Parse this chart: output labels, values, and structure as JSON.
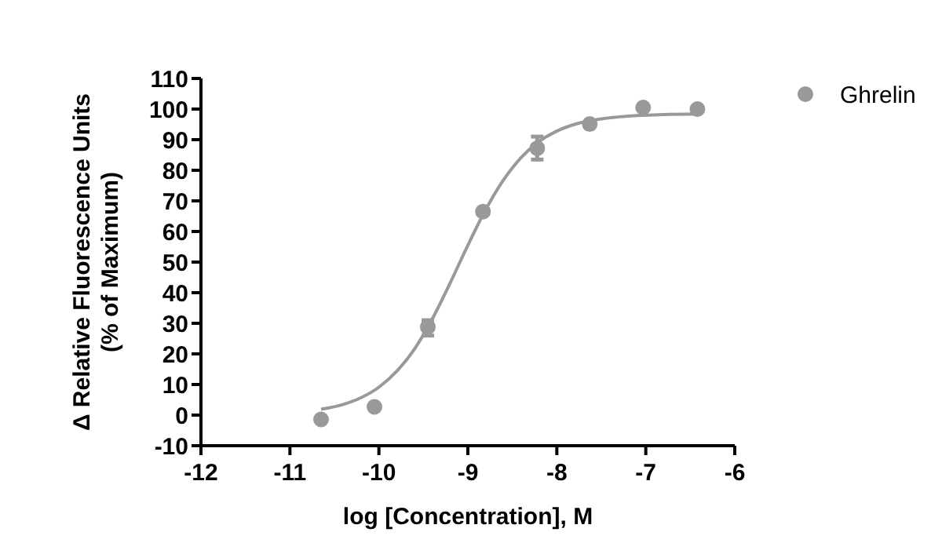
{
  "chart_data": {
    "type": "scatter",
    "xlabel": "log [Concentration], M",
    "ylabel": "Δ Relative Fluorescence Units\n(% of Maximum)",
    "xlim": [
      -12,
      -6
    ],
    "xticks": [
      -12,
      -11,
      -10,
      -9,
      -8,
      -7,
      -6
    ],
    "ylim": [
      -10,
      110
    ],
    "yticks": [
      -10,
      0,
      10,
      20,
      30,
      40,
      50,
      60,
      70,
      80,
      90,
      100,
      110
    ],
    "legend": "top right",
    "marker": "circle",
    "series": [
      {
        "name": "Ghrelin",
        "color": "#999999",
        "x": [
          -10.65,
          -10.05,
          -9.45,
          -8.83,
          -8.22,
          -7.63,
          -7.03,
          -6.42
        ],
        "values": [
          -1.4,
          2.7,
          28.8,
          66.5,
          87.2,
          95.1,
          100.5,
          100
        ],
        "errors": [
          null,
          null,
          [
            26,
            31
          ],
          null,
          [
            83.5,
            91
          ],
          null,
          null,
          null
        ]
      },
      {
        "type": "line",
        "color": "#999999",
        "marker": "none",
        "x": [
          -10.65,
          -10.4,
          -10.2,
          -10,
          -9.8,
          -9.6,
          -9.4,
          -9.2,
          -9,
          -8.8,
          -8.6,
          -8.4,
          -8.2,
          -8,
          -7.8,
          -7.5,
          -7.2,
          -6.8,
          -6.42
        ],
        "values": [
          1.9,
          3.5,
          5.7,
          9.1,
          14.3,
          21.6,
          31.4,
          43.1,
          55.5,
          67.1,
          76.8,
          84.2,
          89.4,
          92.8,
          95,
          96.8,
          97.7,
          98.2,
          98.4
        ]
      }
    ]
  }
}
